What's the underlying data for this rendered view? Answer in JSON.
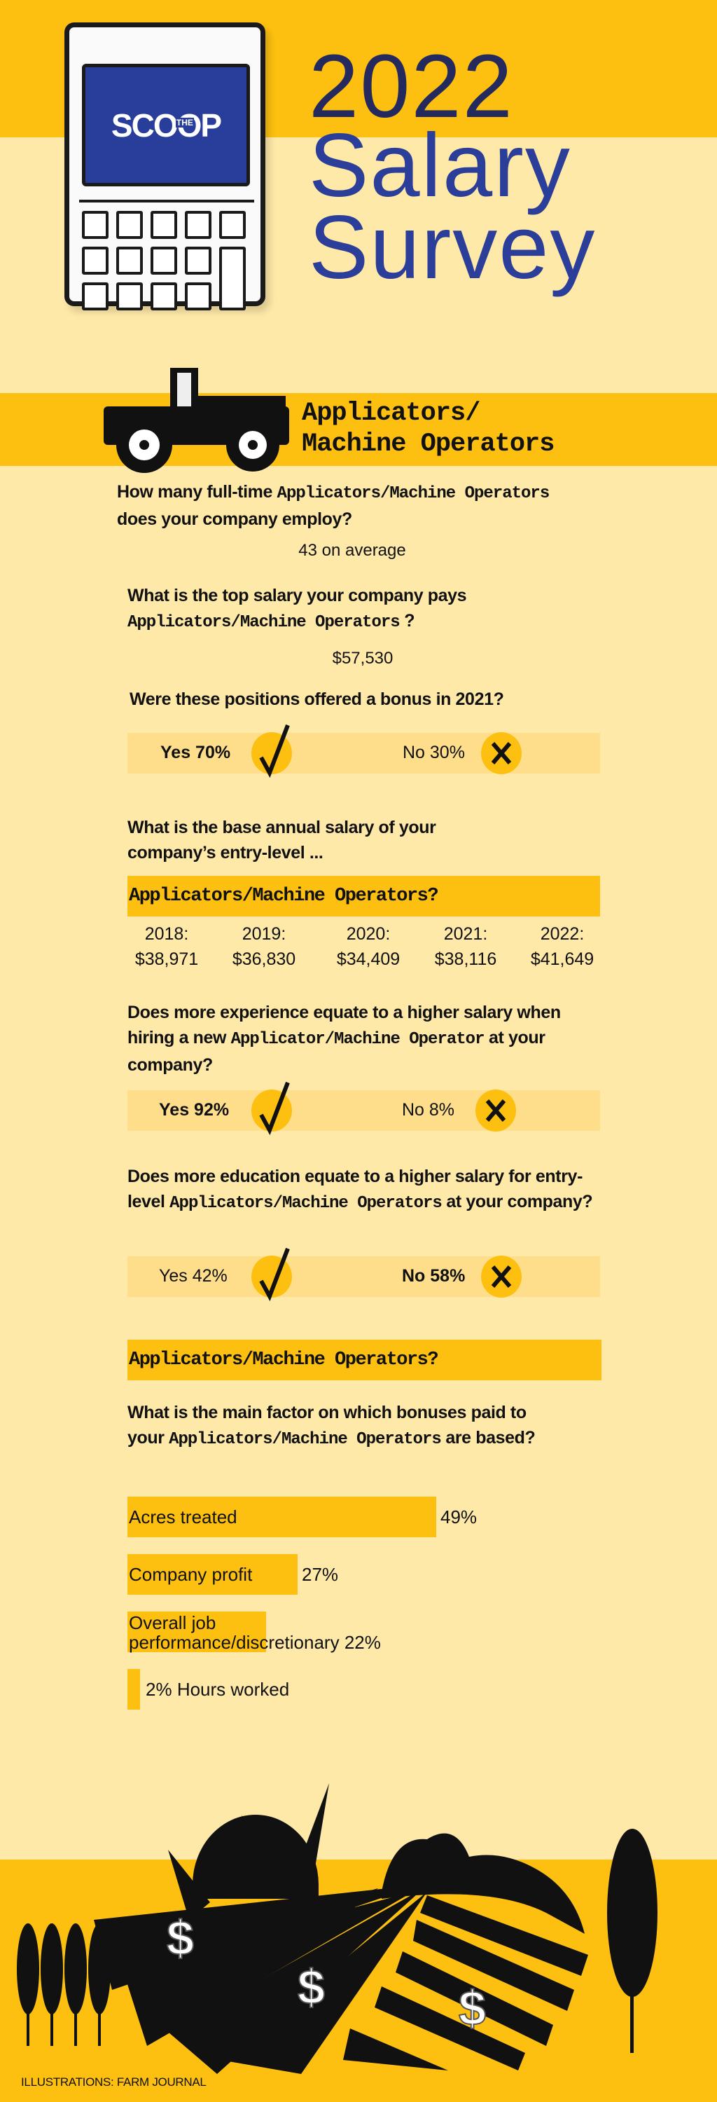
{
  "colors": {
    "yellow": "#fdc010",
    "cream": "#ffe9a8",
    "light_box": "#fede8a",
    "navy": "#252a5e",
    "blue": "#2b3e9a"
  },
  "header": {
    "logo_main": "SCOOP",
    "logo_small": "THE",
    "title_year": "2022",
    "title_line2": "Salary",
    "title_line3": "Survey"
  },
  "section": {
    "title_line1": "Applicators/",
    "title_line2": "Machine Operators",
    "icon": "tractor-icon"
  },
  "q1": {
    "a": "How many full-time ",
    "b": "Applicators/Machine Operators",
    "c": " does your company employ?",
    "answer": "43 on average"
  },
  "q2": {
    "a": "What is the top salary your company pays ",
    "b": "Applicators/Machine Operators",
    "c": " ?",
    "answer": "$57,530"
  },
  "q3": {
    "a": "Were these positions offered a bonus in 2021?",
    "yes": "Yes 70%",
    "no": "No 30%",
    "yes_pct": 70,
    "no_pct": 30,
    "highlight": "yes"
  },
  "q4": {
    "a": "What is the base annual salary of your company’s entry-level ...",
    "bar": "Applicators/Machine Operators?",
    "years": [
      {
        "year": "2018:",
        "salary": "$38,971"
      },
      {
        "year": "2019:",
        "salary": "$36,830"
      },
      {
        "year": "2020:",
        "salary": "$34,409"
      },
      {
        "year": "2021:",
        "salary": "$38,116"
      },
      {
        "year": "2022:",
        "salary": "$41,649"
      }
    ]
  },
  "q5": {
    "a": "Does more experience equate to a higher salary when hiring a new ",
    "b": "Applicator/Machine Operator",
    "c": " at your company?",
    "yes": "Yes 92%",
    "no": "No 8%",
    "yes_pct": 92,
    "no_pct": 8,
    "highlight": "yes"
  },
  "q6": {
    "a": "Does more education equate to a higher salary for entry-level ",
    "b": "Applicators/Machine Operators",
    "c": " at your company?",
    "yes": "Yes 42%",
    "no": "No 58%",
    "yes_pct": 42,
    "no_pct": 58,
    "highlight": "no"
  },
  "q7": {
    "bar": "Applicators/Machine Operators?",
    "a": "What is the main factor on which bonuses paid to your ",
    "b": "Applicators/Machine Operators",
    "c": " are based?",
    "factors": [
      {
        "label": "Acres treated",
        "value": "49%",
        "pct": 49
      },
      {
        "label": "Company profit",
        "value": "27%",
        "pct": 27
      },
      {
        "label": "Overall job performance/discretionary",
        "value": "22%",
        "pct": 22
      },
      {
        "label": "Hours worked",
        "value": "2%",
        "pct": 2
      }
    ]
  },
  "footer": {
    "credit": "ILLUSTRATIONS: FARM JOURNAL"
  }
}
